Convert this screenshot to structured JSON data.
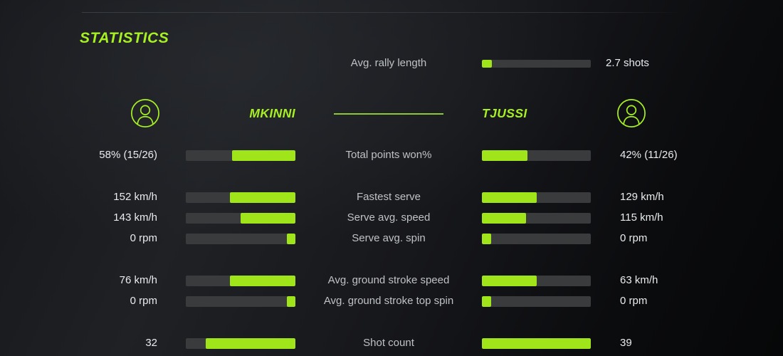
{
  "title": "STATISTICS",
  "colors": {
    "accent_green": "#a7f021",
    "bar_fill_green": "#9fe51a",
    "bar_track_gray": "#3a3b3d",
    "label_gray": "#bfc2c5",
    "value_white": "#e9ecee"
  },
  "icons": {
    "player_left": "person-icon",
    "player_right": "person-icon"
  },
  "rally": {
    "label": "Avg. rally length",
    "value": "2.7 shots",
    "fill_pct": 9
  },
  "players": {
    "left": "MKINNI",
    "right": "TJUSSI"
  },
  "rows": [
    {
      "label": "Total points won%",
      "left_value": "58% (15/26)",
      "right_value": "42% (11/26)",
      "left_pct": 58,
      "right_pct": 42
    },
    {
      "label": "Fastest serve",
      "left_value": "152 km/h",
      "right_value": "129 km/h",
      "left_pct": 60,
      "right_pct": 50
    },
    {
      "label": "Serve avg. speed",
      "left_value": "143 km/h",
      "right_value": "115 km/h",
      "left_pct": 50,
      "right_pct": 40.5
    },
    {
      "label": "Serve avg. spin",
      "left_value": "0 rpm",
      "right_value": "0 rpm",
      "left_pct": 8,
      "right_pct": 8.5
    },
    {
      "label": "Avg. ground stroke speed",
      "left_value": "76 km/h",
      "right_value": "63 km/h",
      "left_pct": 60,
      "right_pct": 50
    },
    {
      "label": "Avg. ground stroke top spin",
      "left_value": "0 rpm",
      "right_value": "0 rpm",
      "left_pct": 8,
      "right_pct": 8.5
    },
    {
      "label": "Shot count",
      "left_value": "32",
      "right_value": "39",
      "left_pct": 82,
      "right_pct": 100
    }
  ]
}
